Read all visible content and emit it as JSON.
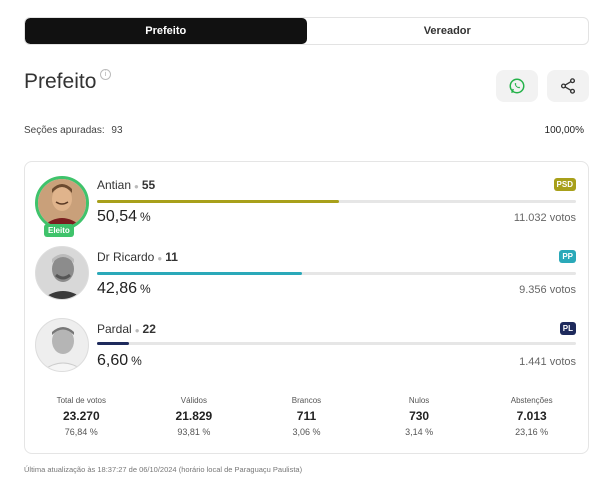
{
  "tabs": [
    {
      "label": "Prefeito",
      "active": true
    },
    {
      "label": "Vereador",
      "active": false
    }
  ],
  "title": "Prefeito",
  "actions": {
    "whatsapp_icon": "whatsapp-icon",
    "share_icon": "share-icon"
  },
  "sections": {
    "label": "Seções apuradas:",
    "count": "93",
    "percent": "100,00%"
  },
  "candidates": [
    {
      "name": "Antian",
      "number": "55",
      "party": "PSD",
      "party_color": "#a8a01a",
      "percent": "50,54",
      "percent_sign": "%",
      "percent_value": 50.54,
      "bar_color": "#a8a01a",
      "votes": "11.032 votos",
      "elected": true,
      "elected_label": "Eleito"
    },
    {
      "name": "Dr Ricardo",
      "number": "11",
      "party": "PP",
      "party_color": "#2aa9b9",
      "percent": "42,86",
      "percent_sign": "%",
      "percent_value": 42.86,
      "bar_color": "#2aa9b9",
      "votes": "9.356 votos",
      "elected": false
    },
    {
      "name": "Pardal",
      "number": "22",
      "party": "PL",
      "party_color": "#1e2a5c",
      "percent": "6,60",
      "percent_sign": "%",
      "percent_value": 6.6,
      "bar_color": "#1e2a5c",
      "votes": "1.441 votos",
      "elected": false
    }
  ],
  "stats": [
    {
      "label": "Total de votos",
      "value": "23.270",
      "percent": "76,84 %"
    },
    {
      "label": "Válidos",
      "value": "21.829",
      "percent": "93,81 %"
    },
    {
      "label": "Brancos",
      "value": "711",
      "percent": "3,06 %"
    },
    {
      "label": "Nulos",
      "value": "730",
      "percent": "3,14 %"
    },
    {
      "label": "Abstenções",
      "value": "7.013",
      "percent": "23,16 %"
    }
  ],
  "footer": "Última atualização às 18:37:27 de 06/10/2024 (horário local de Paraguaçu Paulista)"
}
